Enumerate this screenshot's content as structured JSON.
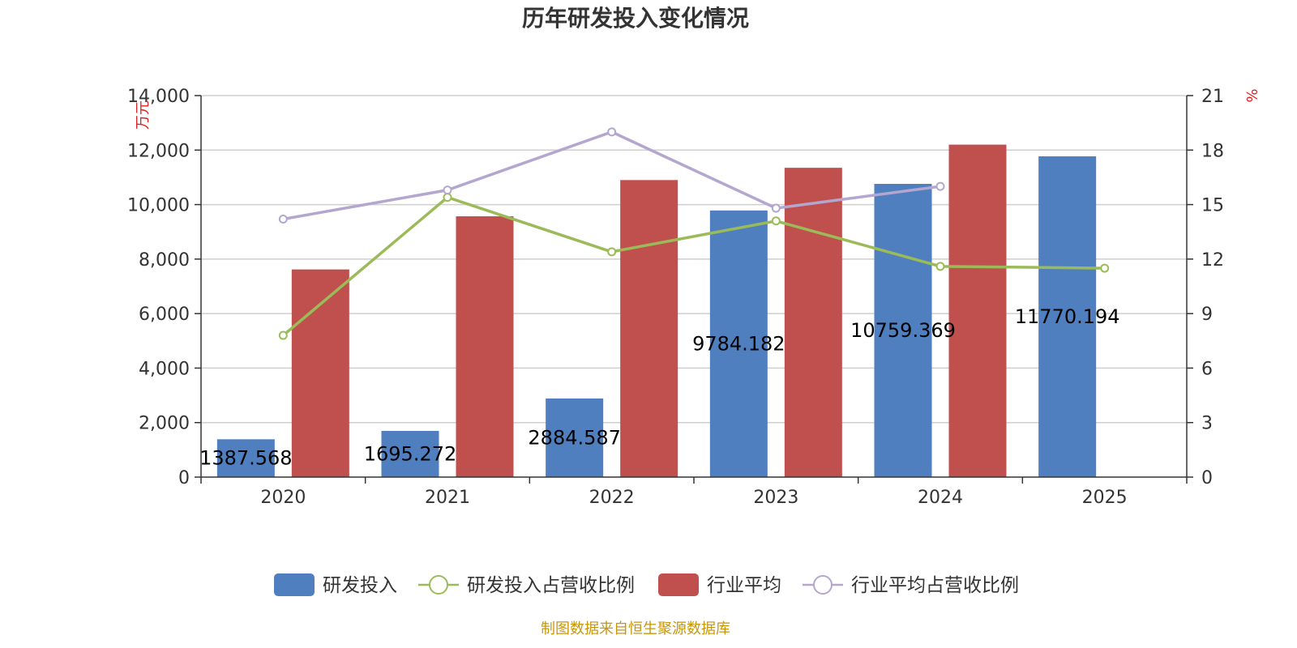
{
  "title": "历年研发投入变化情况",
  "source": "制图数据来自恒生聚源数据库",
  "chart_data": {
    "type": "bar",
    "title": "历年研发投入变化情况",
    "categories": [
      "2020",
      "2021",
      "2022",
      "2023",
      "2024",
      "2025"
    ],
    "y_left": {
      "unit": "万元",
      "ticks": [
        "0",
        "2,000",
        "4,000",
        "6,000",
        "8,000",
        "10,000",
        "12,000",
        "14,000"
      ],
      "range": [
        0,
        14000
      ]
    },
    "y_right": {
      "unit": "%",
      "ticks": [
        "0",
        "3",
        "6",
        "9",
        "12",
        "15",
        "18",
        "21"
      ],
      "range": [
        0,
        21
      ]
    },
    "bar_series": [
      {
        "name": "研发投入",
        "color": "#4f7fbf",
        "values": [
          1387.568,
          1695.272,
          2884.587,
          9784.182,
          10759.369,
          11770.194
        ],
        "labels": [
          "1387.568",
          "1695.272",
          "2884.587",
          "9784.182",
          "10759.369",
          "11770.194"
        ]
      },
      {
        "name": "行业平均",
        "color": "#c0504d",
        "values": [
          7620,
          9570,
          10900,
          11350,
          12200,
          null
        ]
      }
    ],
    "line_series": [
      {
        "name": "研发投入占营收比例",
        "color": "#9bbb59",
        "axis": "right",
        "values": [
          7.8,
          15.4,
          12.4,
          14.1,
          11.6,
          11.5
        ]
      },
      {
        "name": "行业平均占营收比例",
        "color": "#b3a6cf",
        "axis": "right",
        "values": [
          14.2,
          15.8,
          19.0,
          14.8,
          16.0,
          null
        ]
      }
    ],
    "legend_position": "bottom",
    "grid": true
  }
}
